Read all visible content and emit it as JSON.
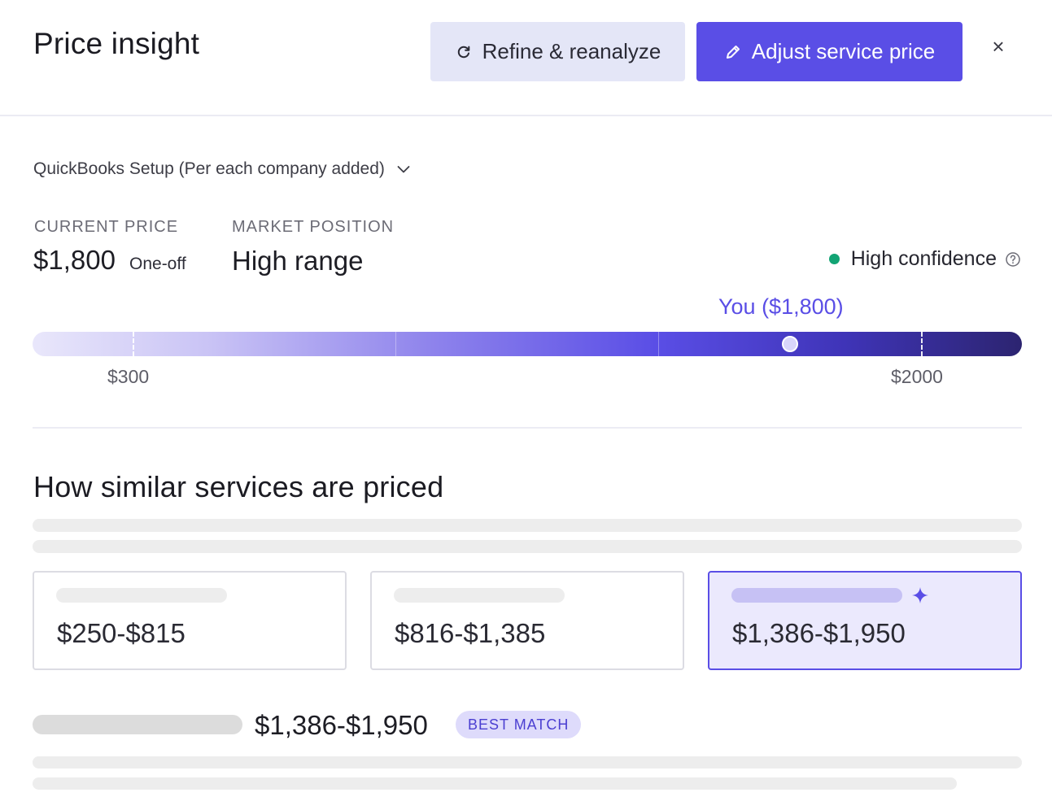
{
  "header": {
    "title": "Price insight",
    "refine_label": "Refine & reanalyze",
    "adjust_label": "Adjust service price",
    "close_label": "×"
  },
  "service": {
    "selected": "QuickBooks Setup (Per each company added)"
  },
  "summary": {
    "current_price_label": "CURRENT PRICE",
    "current_price": "$1,800",
    "current_price_unit": "One-off",
    "market_position_label": "MARKET POSITION",
    "market_position": "High range",
    "confidence": "High confidence"
  },
  "range_bar": {
    "you_label": "You ($1,800)",
    "low_label": "$300",
    "high_label": "$2000",
    "low_value": 300,
    "high_value": 2000,
    "you_value": 1800
  },
  "similar": {
    "title": "How similar services are priced",
    "cards": [
      {
        "range": "$250-$815"
      },
      {
        "range": "$816-$1,385"
      },
      {
        "range": "$1,386-$1,950"
      }
    ],
    "best_match_range": "$1,386-$1,950",
    "best_match_badge": "BEST MATCH"
  },
  "colors": {
    "accent": "#5a4ee6",
    "confidence_green": "#12a474",
    "refine_bg": "#e4e6f7",
    "selected_card_bg": "#ebe9fd"
  },
  "icons": {
    "refine": "refresh-icon",
    "adjust": "pencil-icon",
    "close": "close-icon",
    "dropdown": "chevron-down-icon",
    "help": "help-circle-icon",
    "sparkle": "sparkle-icon"
  }
}
